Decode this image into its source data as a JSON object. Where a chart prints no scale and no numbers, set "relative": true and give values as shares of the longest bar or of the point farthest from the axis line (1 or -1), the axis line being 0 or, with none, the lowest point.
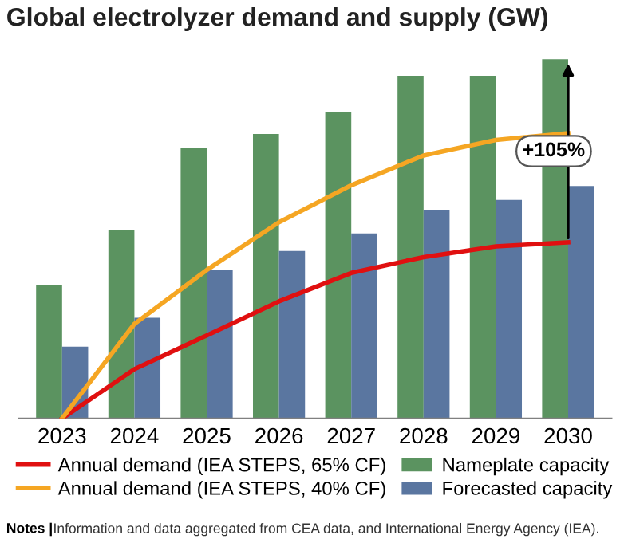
{
  "chart_data": {
    "type": "bar",
    "title": "Global electrolyzer demand and supply (GW)",
    "relative": true,
    "categories": [
      "2023",
      "2024",
      "2025",
      "2026",
      "2027",
      "2028",
      "2029",
      "2030"
    ],
    "series": [
      {
        "name": "Annual demand (IEA STEPS, 65% CF)",
        "type": "line",
        "color": "#e01010",
        "values": [
          0,
          0.137,
          0.231,
          0.326,
          0.405,
          0.449,
          0.479,
          0.49
        ]
      },
      {
        "name": "Annual demand (IEA STEPS, 40% CF)",
        "type": "line",
        "color": "#f5a623",
        "values": [
          0,
          0.263,
          0.413,
          0.546,
          0.649,
          0.732,
          0.775,
          0.794
        ]
      },
      {
        "name": "Nameplate capacity",
        "color": "#5b9360",
        "values": [
          0.372,
          0.523,
          0.754,
          0.792,
          0.852,
          0.954,
          0.954,
          1
        ]
      },
      {
        "name": "Forecasted capacity",
        "color": "#5a76a0",
        "values": [
          0.2,
          0.28,
          0.414,
          0.466,
          0.515,
          0.581,
          0.608,
          0.647
        ]
      }
    ],
    "annotations": [
      "+105%",
      "Notes |",
      "Information and data aggregated from CEA data, and International Energy Agency (IEA)."
    ],
    "legend": "bottom",
    "grid": false
  }
}
